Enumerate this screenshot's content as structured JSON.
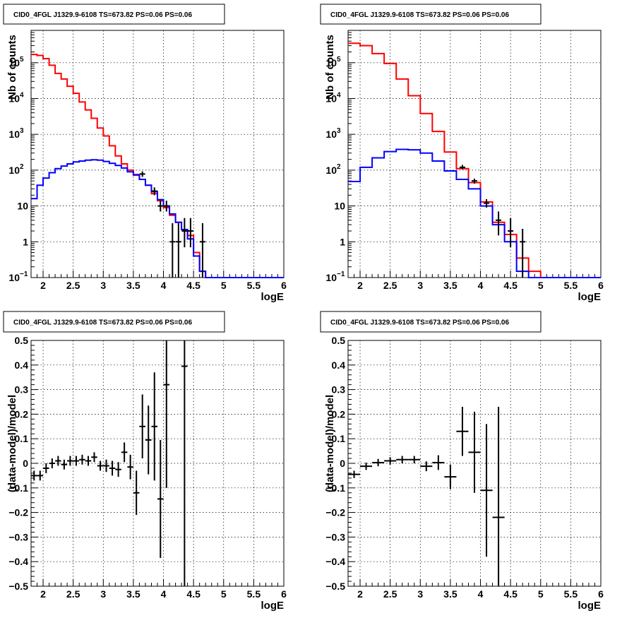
{
  "panels": [
    {
      "id": "counts_fine",
      "title": "CID0_4FGL J1329.9-6108 TS=673.82 PS=0.06 PS=0.06",
      "chart_data": {
        "type": "line",
        "title": "CID0_4FGL J1329.9-6108 TS=673.82 PS=0.06 PS=0.06",
        "xlabel": "logE",
        "ylabel": "Nb of counts",
        "yscale": "log",
        "xlim": [
          1.8,
          6.0
        ],
        "ylim": [
          0.1,
          800000
        ],
        "grid": true,
        "xticks": [
          "2",
          "2.5",
          "3",
          "3.5",
          "4",
          "4.5",
          "5",
          "5.5",
          "6"
        ],
        "yticks": [
          {
            "v": 0.1,
            "base": "10",
            "exp": "−1"
          },
          {
            "v": 1,
            "label": "1"
          },
          {
            "v": 10,
            "label": "10"
          },
          {
            "v": 100,
            "base": "10",
            "exp": "2"
          },
          {
            "v": 1000,
            "base": "10",
            "exp": "3"
          },
          {
            "v": 10000,
            "base": "10",
            "exp": "4"
          },
          {
            "v": 100000,
            "base": "10",
            "exp": "5"
          }
        ],
        "bin_edges": [
          1.8,
          1.9,
          2.0,
          2.1,
          2.2,
          2.3,
          2.4,
          2.5,
          2.6,
          2.7,
          2.8,
          2.9,
          3.0,
          3.1,
          3.2,
          3.3,
          3.4,
          3.5,
          3.6,
          3.7,
          3.8,
          3.9,
          4.0,
          4.1,
          4.2,
          4.3,
          4.4,
          4.5,
          4.6,
          4.7,
          4.8,
          4.9,
          5.0,
          5.1,
          5.2,
          5.3,
          5.4,
          5.5,
          5.6,
          5.7,
          5.8,
          5.9,
          6.0
        ],
        "series": [
          {
            "color": "#ff0000",
            "values": [
              170000,
              160000,
              130000,
              85000,
              50000,
              35000,
              22000,
              14000,
              8000,
              4800,
              2800,
              1500,
              900,
              480,
              250,
              150,
              100,
              72,
              55,
              38,
              22,
              14,
              9,
              5.5,
              3.5,
              2.2,
              1.5,
              0.5,
              0.15,
              0.1,
              0.1,
              0.1,
              0.1,
              0.1,
              0.1,
              0.1,
              0.1,
              0.1,
              0.1,
              0.1,
              0.1,
              0.1
            ]
          },
          {
            "color": "#0000ff",
            "values": [
              16,
              38,
              60,
              85,
              110,
              130,
              150,
              170,
              180,
              190,
              195,
              190,
              175,
              155,
              135,
              115,
              90,
              75,
              55,
              38,
              25,
              15,
              10,
              6,
              3.5,
              2.2,
              1.2,
              0.4,
              0.15,
              0.1,
              0.1,
              0.1,
              0.1,
              0.1,
              0.1,
              0.1,
              0.1,
              0.1,
              0.1,
              0.1,
              0.1,
              0.1
            ]
          }
        ],
        "points": [
          {
            "x": 3.65,
            "y": 78,
            "lo": 65,
            "hi": 92
          },
          {
            "x": 3.85,
            "y": 26,
            "lo": 20,
            "hi": 33
          },
          {
            "x": 3.95,
            "y": 10,
            "lo": 7,
            "hi": 14
          },
          {
            "x": 4.05,
            "y": 10,
            "lo": 7,
            "hi": 14
          },
          {
            "x": 4.15,
            "y": 1,
            "lo": 0.1,
            "hi": 3.3
          },
          {
            "x": 4.25,
            "y": 1,
            "lo": 0.1,
            "hi": 3.3
          },
          {
            "x": 4.35,
            "y": 2,
            "lo": 0.7,
            "hi": 4.6
          },
          {
            "x": 4.45,
            "y": 2,
            "lo": 0.7,
            "hi": 4.6
          },
          {
            "x": 4.65,
            "y": 1,
            "lo": 0.1,
            "hi": 3.3
          }
        ]
      }
    },
    {
      "id": "counts_coarse",
      "title": "CID0_4FGL J1329.9-6108 TS=673.82 PS=0.06 PS=0.06",
      "chart_data": {
        "type": "line",
        "title": "CID0_4FGL J1329.9-6108 TS=673.82 PS=0.06 PS=0.06",
        "xlabel": "logE",
        "ylabel": "Nb of counts",
        "yscale": "log",
        "xlim": [
          1.8,
          6.0
        ],
        "ylim": [
          0.1,
          800000
        ],
        "grid": true,
        "xticks": [
          "2",
          "2.5",
          "3",
          "3.5",
          "4",
          "4.5",
          "5",
          "5.5",
          "6"
        ],
        "yticks": [
          {
            "v": 0.1,
            "base": "10",
            "exp": "−1"
          },
          {
            "v": 1,
            "label": "1"
          },
          {
            "v": 10,
            "label": "10"
          },
          {
            "v": 100,
            "base": "10",
            "exp": "2"
          },
          {
            "v": 1000,
            "base": "10",
            "exp": "3"
          },
          {
            "v": 10000,
            "base": "10",
            "exp": "4"
          },
          {
            "v": 100000,
            "base": "10",
            "exp": "5"
          }
        ],
        "bin_edges": [
          1.8,
          2.0,
          2.2,
          2.4,
          2.6,
          2.8,
          3.0,
          3.2,
          3.4,
          3.6,
          3.8,
          4.0,
          4.2,
          4.4,
          4.6,
          4.8,
          5.0,
          5.2,
          5.4,
          5.6,
          5.8,
          6.0
        ],
        "series": [
          {
            "color": "#ff0000",
            "values": [
              350000,
              300000,
              180000,
              95000,
              35000,
              12000,
              3800,
              1200,
              320,
              110,
              45,
              13,
              3.5,
              1.6,
              0.35,
              0.15,
              0.1,
              0.1,
              0.1,
              0.1,
              0.1
            ]
          },
          {
            "color": "#0000ff",
            "values": [
              48,
              120,
              220,
              330,
              380,
              370,
              300,
              180,
              95,
              55,
              30,
              10,
              3.0,
              1.0,
              0.15,
              0.1,
              0.1,
              0.1,
              0.1,
              0.1,
              0.1
            ]
          }
        ],
        "points": [
          {
            "x": 3.7,
            "y": 120,
            "lo": 105,
            "hi": 140
          },
          {
            "x": 3.9,
            "y": 50,
            "lo": 42,
            "hi": 58
          },
          {
            "x": 4.1,
            "y": 12,
            "lo": 9,
            "hi": 15.5
          },
          {
            "x": 4.3,
            "y": 4,
            "lo": 1.5,
            "hi": 7
          },
          {
            "x": 4.5,
            "y": 2,
            "lo": 0.7,
            "hi": 4.6
          },
          {
            "x": 4.7,
            "y": 1,
            "lo": 0.1,
            "hi": 2.3
          }
        ]
      }
    },
    {
      "id": "resid_fine",
      "title": "CID0_4FGL J1329.9-6108 TS=673.82 PS=0.06 PS=0.06",
      "chart_data": {
        "type": "scatter",
        "title": "CID0_4FGL J1329.9-6108 TS=673.82 PS=0.06 PS=0.06",
        "xlabel": "logE",
        "ylabel": "(data-model)/model",
        "yscale": "linear",
        "xlim": [
          1.8,
          6.0
        ],
        "ylim": [
          -0.5,
          0.5
        ],
        "grid": true,
        "xticks": [
          "2",
          "2.5",
          "3",
          "3.5",
          "4",
          "4.5",
          "5",
          "5.5",
          "6"
        ],
        "yticks": [
          {
            "v": -0.5,
            "label": "−0.5"
          },
          {
            "v": -0.4,
            "label": "−0.4"
          },
          {
            "v": -0.3,
            "label": "−0.3"
          },
          {
            "v": -0.2,
            "label": "−0.2"
          },
          {
            "v": -0.1,
            "label": "−0.1"
          },
          {
            "v": 0,
            "label": "0"
          },
          {
            "v": 0.1,
            "label": "0.1"
          },
          {
            "v": 0.2,
            "label": "0.2"
          },
          {
            "v": 0.3,
            "label": "0.3"
          },
          {
            "v": 0.4,
            "label": "0.4"
          },
          {
            "v": 0.5,
            "label": "0.5"
          }
        ],
        "points": [
          {
            "x": 1.85,
            "y": -0.05,
            "hw": 0.05,
            "err": 0.02
          },
          {
            "x": 1.95,
            "y": -0.05,
            "hw": 0.05,
            "err": 0.02
          },
          {
            "x": 2.05,
            "y": -0.02,
            "hw": 0.05,
            "err": 0.02
          },
          {
            "x": 2.15,
            "y": 0.0,
            "hw": 0.05,
            "err": 0.02
          },
          {
            "x": 2.25,
            "y": 0.01,
            "hw": 0.05,
            "err": 0.02
          },
          {
            "x": 2.35,
            "y": -0.005,
            "hw": 0.05,
            "err": 0.02
          },
          {
            "x": 2.45,
            "y": 0.01,
            "hw": 0.05,
            "err": 0.02
          },
          {
            "x": 2.55,
            "y": 0.01,
            "hw": 0.05,
            "err": 0.02
          },
          {
            "x": 2.65,
            "y": 0.015,
            "hw": 0.05,
            "err": 0.02
          },
          {
            "x": 2.75,
            "y": 0.01,
            "hw": 0.05,
            "err": 0.02
          },
          {
            "x": 2.85,
            "y": 0.025,
            "hw": 0.05,
            "err": 0.02
          },
          {
            "x": 2.95,
            "y": -0.01,
            "hw": 0.05,
            "err": 0.02
          },
          {
            "x": 3.05,
            "y": -0.01,
            "hw": 0.05,
            "err": 0.025
          },
          {
            "x": 3.15,
            "y": -0.02,
            "hw": 0.05,
            "err": 0.03
          },
          {
            "x": 3.25,
            "y": -0.025,
            "hw": 0.05,
            "err": 0.03
          },
          {
            "x": 3.35,
            "y": 0.045,
            "hw": 0.05,
            "err": 0.04
          },
          {
            "x": 3.45,
            "y": -0.015,
            "hw": 0.05,
            "err": 0.05
          },
          {
            "x": 3.55,
            "y": -0.12,
            "hw": 0.05,
            "err": 0.09
          },
          {
            "x": 3.65,
            "y": 0.15,
            "hw": 0.05,
            "err": 0.13
          },
          {
            "x": 3.75,
            "y": 0.095,
            "hw": 0.05,
            "err": 0.14
          },
          {
            "x": 3.85,
            "y": 0.15,
            "hw": 0.05,
            "err": 0.22
          },
          {
            "x": 3.95,
            "y": -0.145,
            "hw": 0.05,
            "err": 0.24
          },
          {
            "x": 4.05,
            "y": 0.32,
            "hw": 0.05,
            "err": 0.42
          },
          {
            "x": 4.35,
            "y": 0.395,
            "hw": 0.05,
            "err": 1.2
          }
        ]
      }
    },
    {
      "id": "resid_coarse",
      "title": "CID0_4FGL J1329.9-6108 TS=673.82 PS=0.06 PS=0.06",
      "chart_data": {
        "type": "scatter",
        "title": "CID0_4FGL J1329.9-6108 TS=673.82 PS=0.06 PS=0.06",
        "xlabel": "logE",
        "ylabel": "(data-model)/model",
        "yscale": "linear",
        "xlim": [
          1.8,
          6.0
        ],
        "ylim": [
          -0.5,
          0.5
        ],
        "grid": true,
        "xticks": [
          "2",
          "2.5",
          "3",
          "3.5",
          "4",
          "4.5",
          "5",
          "5.5",
          "6"
        ],
        "yticks": [
          {
            "v": -0.5,
            "label": "−0.5"
          },
          {
            "v": -0.4,
            "label": "−0.4"
          },
          {
            "v": -0.3,
            "label": "−0.3"
          },
          {
            "v": -0.2,
            "label": "−0.2"
          },
          {
            "v": -0.1,
            "label": "−0.1"
          },
          {
            "v": 0,
            "label": "0"
          },
          {
            "v": 0.1,
            "label": "0.1"
          },
          {
            "v": 0.2,
            "label": "0.2"
          },
          {
            "v": 0.3,
            "label": "0.3"
          },
          {
            "v": 0.4,
            "label": "0.4"
          },
          {
            "v": 0.5,
            "label": "0.5"
          }
        ],
        "points": [
          {
            "x": 1.9,
            "y": -0.045,
            "hw": 0.1,
            "err": 0.015
          },
          {
            "x": 2.1,
            "y": -0.012,
            "hw": 0.1,
            "err": 0.015
          },
          {
            "x": 2.3,
            "y": 0.003,
            "hw": 0.1,
            "err": 0.015
          },
          {
            "x": 2.5,
            "y": 0.01,
            "hw": 0.1,
            "err": 0.015
          },
          {
            "x": 2.7,
            "y": 0.015,
            "hw": 0.1,
            "err": 0.015
          },
          {
            "x": 2.9,
            "y": 0.015,
            "hw": 0.1,
            "err": 0.015
          },
          {
            "x": 3.1,
            "y": -0.012,
            "hw": 0.1,
            "err": 0.02
          },
          {
            "x": 3.3,
            "y": 0.003,
            "hw": 0.1,
            "err": 0.03
          },
          {
            "x": 3.5,
            "y": -0.055,
            "hw": 0.1,
            "err": 0.05
          },
          {
            "x": 3.7,
            "y": 0.13,
            "hw": 0.1,
            "err": 0.1
          },
          {
            "x": 3.9,
            "y": 0.045,
            "hw": 0.1,
            "err": 0.165
          },
          {
            "x": 4.1,
            "y": -0.11,
            "hw": 0.1,
            "err": 0.27
          },
          {
            "x": 4.3,
            "y": -0.22,
            "hw": 0.1,
            "err": 0.45
          }
        ]
      }
    }
  ]
}
